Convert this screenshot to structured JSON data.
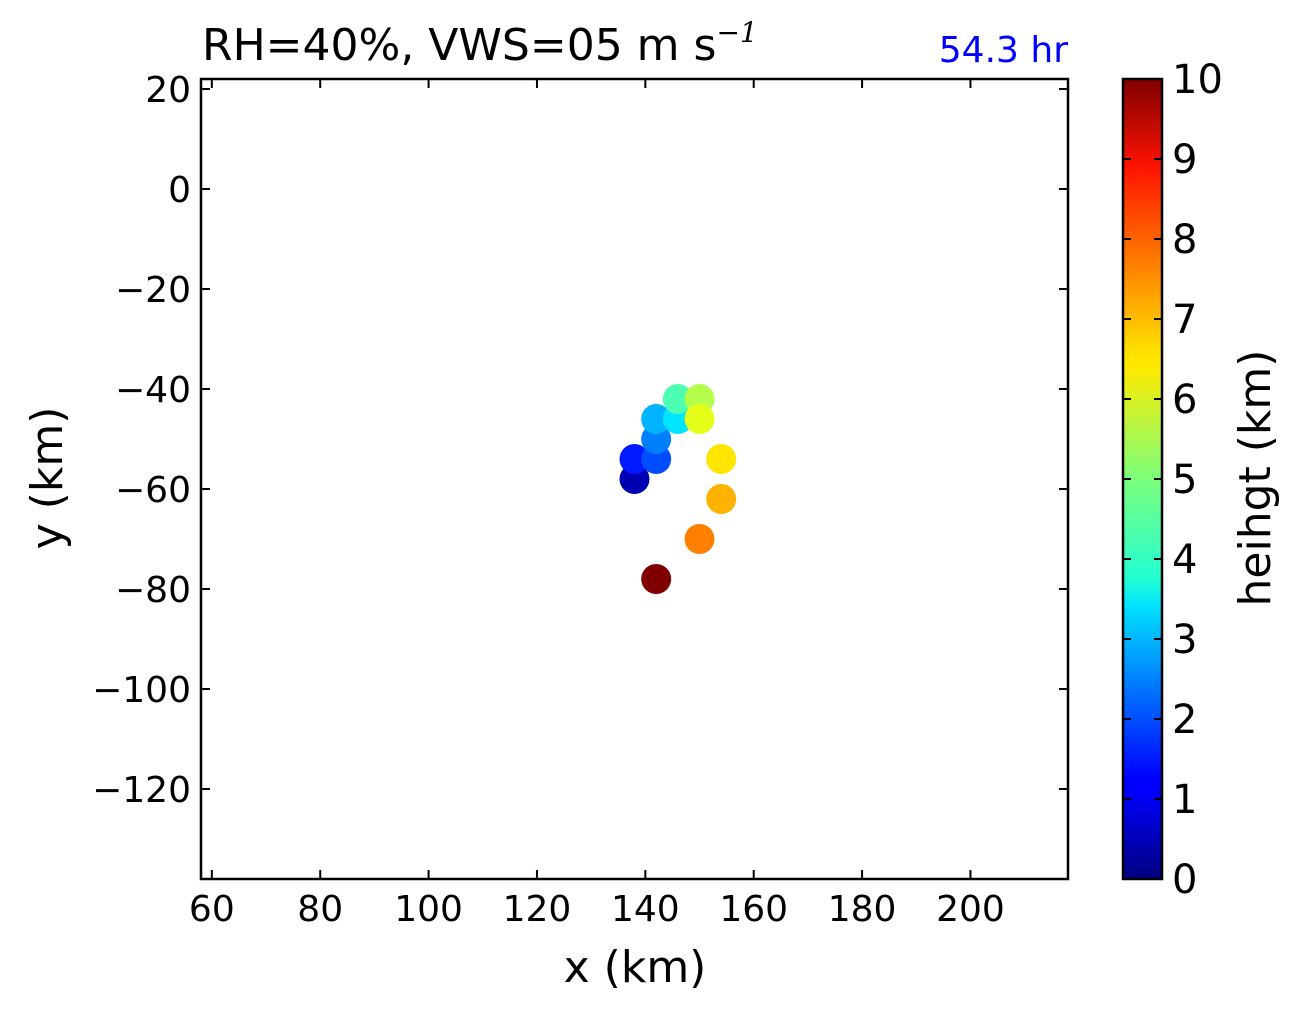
{
  "chart_data": {
    "type": "scatter",
    "title": "RH=40%, VWS=05 m s",
    "title_superscript": "−1",
    "time_label": "54.3 hr",
    "xlabel": "x (km)",
    "ylabel": "y (km)",
    "xlim": [
      58,
      218
    ],
    "ylim": [
      -138,
      22
    ],
    "xticks": [
      60,
      80,
      100,
      120,
      140,
      160,
      180,
      200
    ],
    "xtick_labels": [
      "60",
      "80",
      "100",
      "120",
      "140",
      "160",
      "180",
      "200"
    ],
    "yticks": [
      20,
      0,
      -20,
      -40,
      -60,
      -80,
      -100,
      -120
    ],
    "ytick_labels": [
      "20",
      "0",
      "−20",
      "−40",
      "−60",
      "−80",
      "−100",
      "−120"
    ],
    "grid": false,
    "colorbar": {
      "label": "heihgt (km)",
      "range": [
        0,
        10
      ],
      "ticks": [
        0,
        1,
        2,
        3,
        4,
        5,
        6,
        7,
        8,
        9,
        10
      ],
      "tick_labels": [
        "0",
        "1",
        "2",
        "3",
        "4",
        "5",
        "6",
        "7",
        "8",
        "9",
        "10"
      ],
      "colormap": "jet"
    },
    "points": [
      {
        "x": 138,
        "y": -58,
        "height": 0.5
      },
      {
        "x": 138,
        "y": -54,
        "height": 1.5
      },
      {
        "x": 142,
        "y": -54,
        "height": 2.0
      },
      {
        "x": 142,
        "y": -50,
        "height": 2.5
      },
      {
        "x": 142,
        "y": -46,
        "height": 3.0
      },
      {
        "x": 146,
        "y": -46,
        "height": 3.5
      },
      {
        "x": 146,
        "y": -42,
        "height": 4.5
      },
      {
        "x": 150,
        "y": -42,
        "height": 5.5
      },
      {
        "x": 150,
        "y": -46,
        "height": 6.0
      },
      {
        "x": 154,
        "y": -54,
        "height": 6.5
      },
      {
        "x": 154,
        "y": -62,
        "height": 7.0
      },
      {
        "x": 150,
        "y": -70,
        "height": 7.5
      },
      {
        "x": 142,
        "y": -78,
        "height": 10.0
      }
    ],
    "colors": {
      "time_label": "#0000ff",
      "axes": "#000000"
    }
  }
}
